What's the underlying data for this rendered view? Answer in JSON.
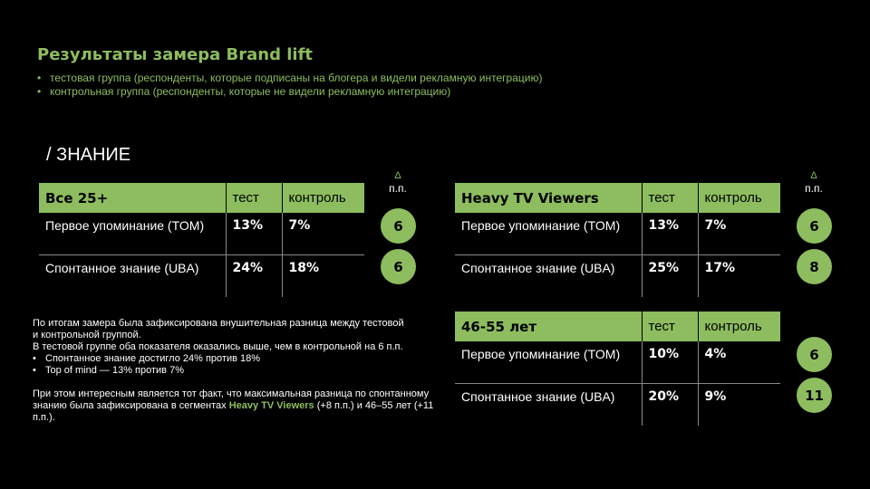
{
  "title": "Результаты замера Brand lift",
  "subtitle_bullets": [
    "тестовая группа (респонденты, которые подписаны на блогера и видели рекламную интеграцию)",
    "контрольная группа (респонденты, которые не видели рекламную интеграцию)"
  ],
  "section_title": "/ ЗНАНИЕ",
  "delta_label": "п.п.",
  "delta_symbol": "Δ",
  "tables": [
    {
      "segment": "Все 25+",
      "col_test": "тест",
      "col_control": "контроль",
      "rows": [
        {
          "metric": "Первое упоминание (TOM)",
          "test": "13%",
          "control": "7%",
          "diff": "6"
        },
        {
          "metric": "Спонтанное знание (UBA)",
          "test": "24%",
          "control": "18%",
          "diff": "6"
        }
      ]
    },
    {
      "segment": "Heavy TV Viewers",
      "col_test": "тест",
      "col_control": "контроль",
      "rows": [
        {
          "metric": "Первое упоминание (TOM)",
          "test": "13%",
          "control": "7%",
          "diff": "6"
        },
        {
          "metric": "Спонтанное знание (UBA)",
          "test": "25%",
          "control": "17%",
          "diff": "8"
        }
      ]
    },
    {
      "segment": "46-55 лет",
      "col_test": "тест",
      "col_control": "контроль",
      "rows": [
        {
          "metric": "Первое упоминание (TOM)",
          "test": "10%",
          "control": "4%",
          "diff": "6"
        },
        {
          "metric": "Спонтанное знание (UBA)",
          "test": "20%",
          "control": "9%",
          "diff": "11"
        }
      ]
    }
  ],
  "summary": {
    "line1": "По итогам замера была зафиксирована внушительная разница между тестовой",
    "line2": "и контрольной группой.",
    "line3": "В тестовой группе оба показателя оказались выше, чем в контрольной на 6 п.п.",
    "bullets": [
      "Спонтанное знание достигло 24% против 18%",
      "Top of mind — 13% против 7%"
    ],
    "para2_start": "При этом интересным является тот факт, что максимальная разница по спонтанному знанию была зафиксирована в сегментах ",
    "para2_highlight": "Heavy TV Viewers",
    "para2_end": " (+8 п.п.) и 46–55 лет (+11 п.п.)."
  },
  "colors": {
    "accent": "#8dbd5e",
    "background": "#000000",
    "text": "#ffffff"
  }
}
